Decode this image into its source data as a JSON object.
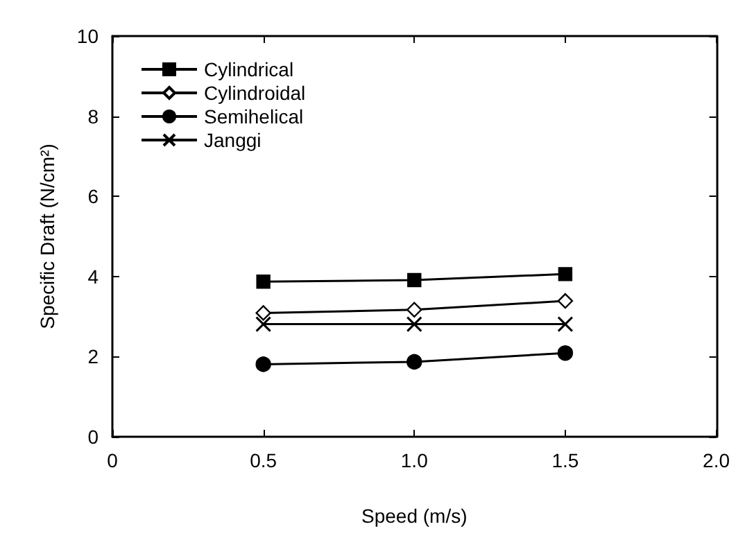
{
  "chart_data": {
    "type": "line",
    "xlabel": "Speed (m/s)",
    "ylabel": "Specific Draft (N/cm²)",
    "xlim": [
      0,
      2
    ],
    "xticks": [
      0,
      0.5,
      {
        "value": 1,
        "label": "1.0"
      },
      1.5,
      {
        "value": 2,
        "label": "2.0"
      }
    ],
    "ylim": [
      0,
      10
    ],
    "yticks": [
      0,
      2,
      4,
      6,
      8,
      10
    ],
    "x": [
      0.5,
      1,
      1.5
    ],
    "grid": false,
    "legend": "top left",
    "line_style": "solid",
    "series": [
      {
        "name": "Cylindrical",
        "color": "#000000",
        "marker": "square",
        "values": [
          3.87,
          3.91,
          4.06
        ]
      },
      {
        "name": "Cylindroidal",
        "color": "#000000",
        "marker": "diamond",
        "values": [
          3.09,
          3.17,
          3.39
        ]
      },
      {
        "name": "Semihelical",
        "color": "#000000",
        "marker": "circle",
        "values": [
          1.81,
          1.87,
          2.09
        ]
      },
      {
        "name": "Janggi",
        "color": "#000000",
        "marker": "cross",
        "values": [
          2.81,
          2.81,
          2.81
        ]
      }
    ]
  }
}
